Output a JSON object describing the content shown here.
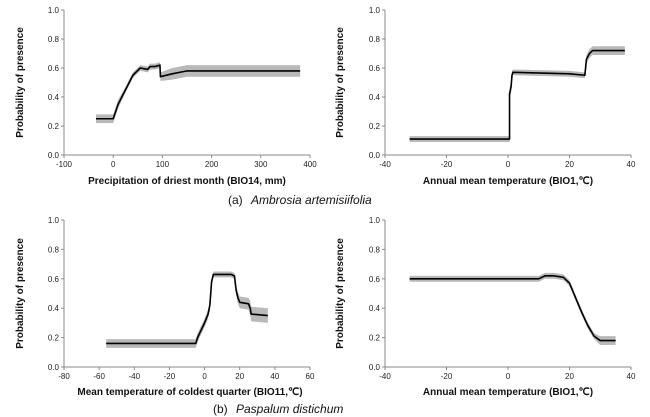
{
  "captions": [
    {
      "label": "(a)",
      "species": "Ambrosia artemisiifolia"
    },
    {
      "label": "(b)",
      "species": "Paspalum distichum"
    }
  ],
  "chart_data": [
    {
      "type": "line",
      "panel": "a-left",
      "ylabel": "Probability of presence",
      "xlabel": "Precipitation of driest month (BIO14, mm)",
      "xlim": [
        -100,
        400
      ],
      "ylim": [
        0,
        1
      ],
      "xticks": [
        -100,
        0,
        100,
        200,
        300,
        400
      ],
      "yticks": [
        0.0,
        0.2,
        0.4,
        0.6,
        0.8,
        1.0
      ],
      "xtick_labels": [
        "-100",
        "0",
        "100",
        "200",
        "300",
        "400"
      ],
      "ytick_labels": [
        "0.0",
        "0.2",
        "0.4",
        "0.6",
        "0.8",
        "1.0"
      ],
      "series": [
        {
          "name": "response",
          "x": [
            -35,
            0,
            10,
            25,
            40,
            55,
            70,
            75,
            85,
            95,
            96,
            120,
            150,
            380
          ],
          "y": [
            0.25,
            0.25,
            0.35,
            0.45,
            0.55,
            0.6,
            0.59,
            0.61,
            0.61,
            0.62,
            0.54,
            0.56,
            0.58,
            0.58
          ]
        }
      ],
      "band_half_width": [
        0.03,
        0.03,
        0.03,
        0.02,
        0.02,
        0.02,
        0.02,
        0.02,
        0.02,
        0.02,
        0.03,
        0.04,
        0.04,
        0.04
      ]
    },
    {
      "type": "line",
      "panel": "a-right",
      "ylabel": "Probability of presence",
      "xlabel": "Annual mean temperature (BIO1,℃)",
      "xlim": [
        -40,
        40
      ],
      "ylim": [
        0,
        1
      ],
      "xticks": [
        -40,
        -20,
        0,
        20,
        40
      ],
      "yticks": [
        0.0,
        0.2,
        0.4,
        0.6,
        0.8,
        1.0
      ],
      "xtick_labels": [
        "-40",
        "-20",
        "0",
        "20",
        "40"
      ],
      "ytick_labels": [
        "0.0",
        "0.2",
        "0.4",
        "0.6",
        "0.8",
        "1.0"
      ],
      "series": [
        {
          "name": "response",
          "x": [
            -32,
            0.5,
            0.5,
            1.0,
            1.3,
            1.6,
            20,
            25,
            25.5,
            26.5,
            27.5,
            38
          ],
          "y": [
            0.11,
            0.11,
            0.42,
            0.47,
            0.55,
            0.57,
            0.56,
            0.55,
            0.66,
            0.7,
            0.72,
            0.72
          ]
        }
      ],
      "band_half_width": [
        0.02,
        0.02,
        0.04,
        0.04,
        0.03,
        0.02,
        0.02,
        0.02,
        0.03,
        0.03,
        0.03,
        0.03
      ]
    },
    {
      "type": "line",
      "panel": "b-left",
      "ylabel": "Probability of presence",
      "xlabel": "Mean temperature of coldest quarter (BIO11,℃)",
      "xlim": [
        -80,
        60
      ],
      "ylim": [
        0,
        1
      ],
      "xticks": [
        -80,
        -60,
        -40,
        -20,
        0,
        20,
        40,
        60
      ],
      "yticks": [
        0.0,
        0.2,
        0.4,
        0.6,
        0.8,
        1.0
      ],
      "xtick_labels": [
        "-80",
        "-60",
        "-40",
        "-20",
        "0",
        "20",
        "40",
        "60"
      ],
      "ytick_labels": [
        "0.0",
        "0.2",
        "0.4",
        "0.6",
        "0.8",
        "1.0"
      ],
      "series": [
        {
          "name": "response",
          "x": [
            -56,
            -5,
            -4,
            -2,
            0,
            2,
            3,
            4,
            5,
            15,
            17,
            18,
            19,
            20,
            25,
            26,
            26.5,
            36
          ],
          "y": [
            0.16,
            0.16,
            0.2,
            0.25,
            0.3,
            0.36,
            0.42,
            0.58,
            0.63,
            0.63,
            0.62,
            0.52,
            0.47,
            0.44,
            0.43,
            0.4,
            0.36,
            0.35
          ]
        }
      ],
      "band_half_width": [
        0.03,
        0.03,
        0.03,
        0.03,
        0.03,
        0.03,
        0.04,
        0.03,
        0.02,
        0.02,
        0.02,
        0.03,
        0.04,
        0.04,
        0.04,
        0.05,
        0.05,
        0.05
      ]
    },
    {
      "type": "line",
      "panel": "b-right",
      "ylabel": "Probability of presence",
      "xlabel": "Annual mean temperature (BIO1,℃)",
      "xlim": [
        -40,
        40
      ],
      "ylim": [
        0,
        1
      ],
      "xticks": [
        -40,
        -20,
        0,
        20,
        40
      ],
      "yticks": [
        0.0,
        0.2,
        0.4,
        0.6,
        0.8,
        1.0
      ],
      "xtick_labels": [
        "-40",
        "-20",
        "0",
        "20",
        "40"
      ],
      "ytick_labels": [
        "0.0",
        "0.2",
        "0.4",
        "0.6",
        "0.8",
        "1.0"
      ],
      "series": [
        {
          "name": "response",
          "x": [
            -32,
            10,
            12,
            15,
            18,
            20,
            22,
            24,
            26,
            28,
            30,
            35
          ],
          "y": [
            0.6,
            0.6,
            0.62,
            0.62,
            0.61,
            0.57,
            0.47,
            0.37,
            0.28,
            0.21,
            0.18,
            0.18
          ]
        }
      ],
      "band_half_width": [
        0.02,
        0.02,
        0.02,
        0.02,
        0.02,
        0.02,
        0.02,
        0.02,
        0.02,
        0.02,
        0.03,
        0.03
      ]
    }
  ]
}
